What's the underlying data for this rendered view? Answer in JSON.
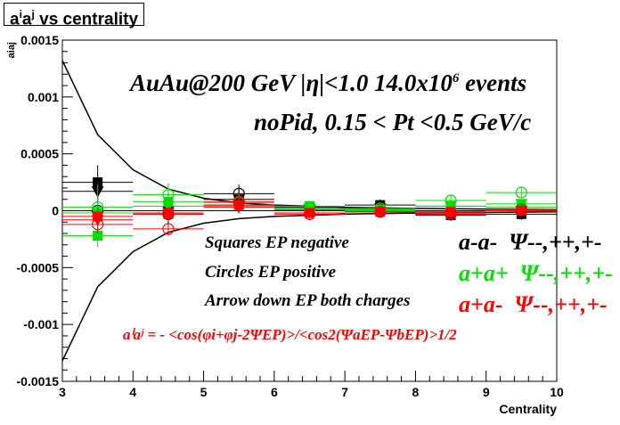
{
  "chart_data": {
    "type": "scatter",
    "title": "aiaj vs centrality",
    "title_parts": {
      "base1": "a",
      "sup1": "i",
      "base2": "a",
      "sup2": "j",
      "rest": " vs centrality"
    },
    "xlabel": "Centrality",
    "ylabel": "aiaj",
    "xlim": [
      3,
      10
    ],
    "ylim": [
      -0.0015,
      0.0015
    ],
    "x_ticks": [
      3,
      4,
      5,
      6,
      7,
      8,
      9,
      10
    ],
    "x_tick_labels": [
      "3",
      "4",
      "5",
      "6",
      "7",
      "8",
      "9",
      "10"
    ],
    "y_ticks": [
      -0.0015,
      -0.001,
      -0.0005,
      0,
      0.0005,
      0.001,
      0.0015
    ],
    "y_tick_labels": [
      "-0.0015",
      "-0.001",
      "-0.0005",
      "0",
      "0.0005",
      "0.001",
      "0.0015"
    ],
    "grid": false,
    "annotations": {
      "line1": "AuAu@200 GeV |η|<1.0 14.0x10",
      "line1_sup": "6",
      "line1_end": " events",
      "line2": "noPid, 0.15 < Pt <0.5 GeV/c",
      "squares": "Squares EP negative",
      "circles": "Circles EP positive",
      "arrows": "Arrow down EP both charges",
      "formula": "aⁱaʲ = - <cos(φi+φj-2ΨEP)>/<cos2(ΨaEP-ΨbEP)>1/2"
    },
    "legend_placement": "right",
    "legend": [
      {
        "label": "a-a-",
        "psi": "Ψ--,++,+-",
        "color": "#000000"
      },
      {
        "label": "a+a+",
        "psi": "Ψ--,++,+-",
        "color": "#00dd00"
      },
      {
        "label": "a+a-",
        "psi": "Ψ--,++,+-",
        "color": "#ff0000"
      }
    ],
    "envelope_curves": [
      {
        "name": "upper",
        "x": [
          3.0,
          3.5,
          4.0,
          4.5,
          5.0,
          5.5,
          6.0,
          7.0,
          8.0,
          9.0,
          10.0
        ],
        "y": [
          0.00132,
          0.00067,
          0.00036,
          0.00019,
          0.00011,
          7e-05,
          5e-05,
          3e-05,
          2e-05,
          1.5e-05,
          1e-05
        ]
      },
      {
        "name": "lower",
        "x": [
          3.0,
          3.5,
          4.0,
          4.5,
          5.0,
          5.5,
          6.0,
          7.0,
          8.0,
          9.0,
          10.0
        ],
        "y": [
          -0.00132,
          -0.00067,
          -0.00036,
          -0.00019,
          -0.00011,
          -7e-05,
          -5e-05,
          -3e-05,
          -2e-05,
          -1.5e-05,
          -1e-05
        ]
      }
    ],
    "series": [
      {
        "name": "a-a- squares",
        "color": "#000000",
        "marker": "square",
        "filled": true,
        "x": [
          3.5,
          4.5,
          5.5,
          6.5,
          7.5,
          8.5,
          9.5
        ],
        "y": [
          0.00025,
          0.0,
          0.0001,
          3e-05,
          5e-05,
          -4e-05,
          -3e-05
        ],
        "err": [
          0.00015,
          0.00012,
          8e-05,
          6e-05,
          5e-05,
          5e-05,
          5e-05
        ]
      },
      {
        "name": "a-a- circles",
        "color": "#000000",
        "marker": "circle",
        "filled": false,
        "x": [
          3.5,
          4.5,
          5.5,
          6.5,
          7.5,
          8.5,
          9.5
        ],
        "y": [
          0.0,
          -3e-05,
          0.00015,
          2e-05,
          1e-05,
          -3e-05,
          0.0
        ],
        "err": [
          0.0001,
          0.0001,
          8e-05,
          6e-05,
          5e-05,
          5e-05,
          5e-05
        ]
      },
      {
        "name": "a-a- arrows",
        "color": "#000000",
        "marker": "triangle-down",
        "filled": true,
        "x": [
          3.5,
          4.5,
          5.5,
          6.5,
          7.5,
          8.5,
          9.5
        ],
        "y": [
          0.00017,
          0.0,
          5e-05,
          1e-05,
          2e-05,
          -2e-05,
          0.0
        ],
        "err": [
          8e-05,
          6e-05,
          5e-05,
          4e-05,
          4e-05,
          4e-05,
          4e-05
        ]
      },
      {
        "name": "a+a+ squares",
        "color": "#00dd00",
        "marker": "square",
        "filled": true,
        "x": [
          3.5,
          4.5,
          5.5,
          6.5,
          7.5,
          8.5,
          9.5
        ],
        "y": [
          -0.00022,
          8e-05,
          5e-05,
          4e-05,
          0.0,
          4e-05,
          3e-05
        ],
        "err": [
          0.0001,
          8e-05,
          6e-05,
          5e-05,
          5e-05,
          5e-05,
          5e-05
        ]
      },
      {
        "name": "a+a+ circles",
        "color": "#00dd00",
        "marker": "circle",
        "filled": false,
        "x": [
          3.5,
          4.5,
          5.5,
          6.5,
          7.5,
          8.5,
          9.5
        ],
        "y": [
          3e-05,
          0.00014,
          7e-05,
          1e-05,
          2e-05,
          9e-05,
          0.00016
        ],
        "err": [
          0.0002,
          0.0001,
          8e-05,
          6e-05,
          5e-05,
          5e-05,
          5e-05
        ]
      },
      {
        "name": "a+a+ arrows",
        "color": "#00dd00",
        "marker": "triangle-down",
        "filled": true,
        "x": [
          3.5,
          4.5,
          5.5,
          6.5,
          7.5,
          8.5,
          9.5
        ],
        "y": [
          -2e-05,
          4e-05,
          4e-05,
          2e-05,
          1e-05,
          4e-05,
          6e-05
        ],
        "err": [
          8e-05,
          6e-05,
          5e-05,
          4e-05,
          4e-05,
          4e-05,
          4e-05
        ]
      },
      {
        "name": "a+a- squares",
        "color": "#ff0000",
        "marker": "square",
        "filled": true,
        "x": [
          3.5,
          4.5,
          5.5,
          6.5,
          7.5,
          8.5,
          9.5
        ],
        "y": [
          -5e-05,
          -3e-05,
          5e-05,
          -2e-05,
          -1e-05,
          -1e-05,
          0.0
        ],
        "err": [
          8e-05,
          6e-05,
          5e-05,
          4e-05,
          4e-05,
          4e-05,
          4e-05
        ]
      },
      {
        "name": "a+a- circles",
        "color": "#ff0000",
        "marker": "circle",
        "filled": false,
        "x": [
          3.5,
          4.5,
          5.5,
          6.5,
          7.5,
          8.5,
          9.5
        ],
        "y": [
          -0.00012,
          -0.00016,
          8e-05,
          -3e-05,
          -1e-05,
          -3e-05,
          1e-05
        ],
        "err": [
          8e-05,
          6e-05,
          5e-05,
          4e-05,
          4e-05,
          4e-05,
          4e-05
        ]
      },
      {
        "name": "a+a- arrows",
        "color": "#ff0000",
        "marker": "triangle-down",
        "filled": true,
        "x": [
          3.5,
          4.5,
          5.5,
          6.5,
          7.5,
          8.5,
          9.5
        ],
        "y": [
          -8e-05,
          -2e-05,
          3e-05,
          -2e-05,
          -1e-05,
          -2e-05,
          0.0
        ],
        "err": [
          6e-05,
          5e-05,
          4e-05,
          4e-05,
          4e-05,
          4e-05,
          4e-05
        ]
      }
    ]
  }
}
